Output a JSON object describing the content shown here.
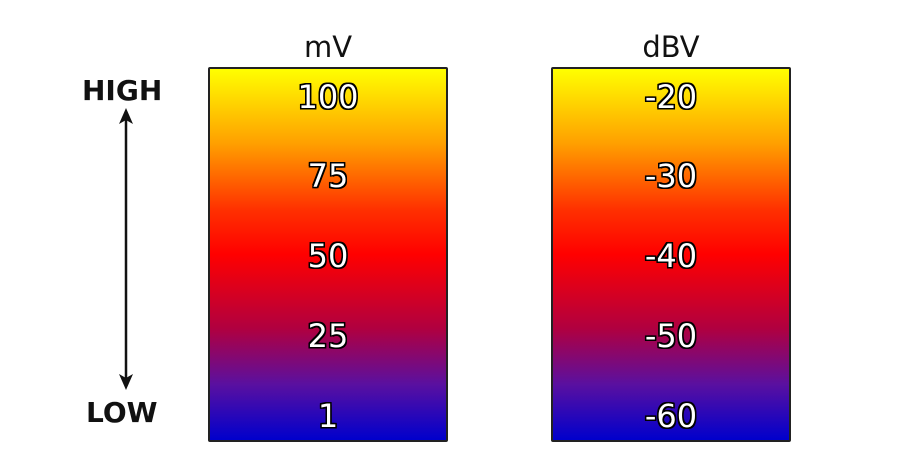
{
  "scale": {
    "high_label": "HIGH",
    "low_label": "LOW"
  },
  "columns": [
    {
      "title": "mV",
      "values": [
        "100",
        "75",
        "50",
        "25",
        "1"
      ]
    },
    {
      "title": "dBV",
      "values": [
        "-20",
        "-30",
        "-40",
        "-50",
        "-60"
      ]
    }
  ],
  "colors": {
    "top": "#ffff00",
    "middle": "#ff0000",
    "bottom": "#0000cc"
  }
}
